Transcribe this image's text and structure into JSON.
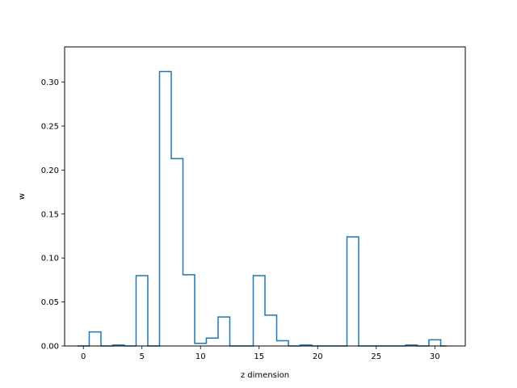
{
  "chart_data": {
    "type": "step",
    "title": "",
    "xlabel": "z dimension",
    "ylabel": "w",
    "xlim": [
      -1.6,
      32.6
    ],
    "ylim": [
      0,
      0.34
    ],
    "xticks": [
      0,
      5,
      10,
      15,
      20,
      25,
      30
    ],
    "yticks": [
      0.0,
      0.05,
      0.1,
      0.15,
      0.2,
      0.25,
      0.3
    ],
    "ytick_labels": [
      "0.00",
      "0.05",
      "0.10",
      "0.15",
      "0.20",
      "0.25",
      "0.30"
    ],
    "grid": false,
    "series": [
      {
        "color": "#1f77b4",
        "step_edges": [
          -0.5,
          0.5,
          1.5,
          2.5,
          3.5,
          4.5,
          5.5,
          6.5,
          7.5,
          8.5,
          9.5,
          10.5,
          11.5,
          12.5,
          13.5,
          14.5,
          15.5,
          16.5,
          17.5,
          18.5,
          19.5,
          20.5,
          21.5,
          22.5,
          23.5,
          24.5,
          25.5,
          26.5,
          27.5,
          28.5,
          29.5,
          30.5,
          31.0
        ],
        "x": [
          0,
          1,
          2,
          3,
          4,
          5,
          6,
          7,
          8,
          9,
          10,
          11,
          12,
          13,
          14,
          15,
          16,
          17,
          18,
          19,
          20,
          21,
          22,
          23,
          24,
          25,
          26,
          27,
          28,
          29,
          30,
          31
        ],
        "values": [
          0.0,
          0.016,
          0.0,
          0.001,
          0.0,
          0.08,
          0.0,
          0.312,
          0.213,
          0.081,
          0.003,
          0.009,
          0.033,
          0.0,
          0.0,
          0.08,
          0.035,
          0.006,
          0.0,
          0.001,
          0.0,
          0.0,
          0.0,
          0.124,
          0.0,
          0.0,
          0.0,
          0.0,
          0.001,
          0.0,
          0.007,
          0.0
        ]
      }
    ]
  }
}
